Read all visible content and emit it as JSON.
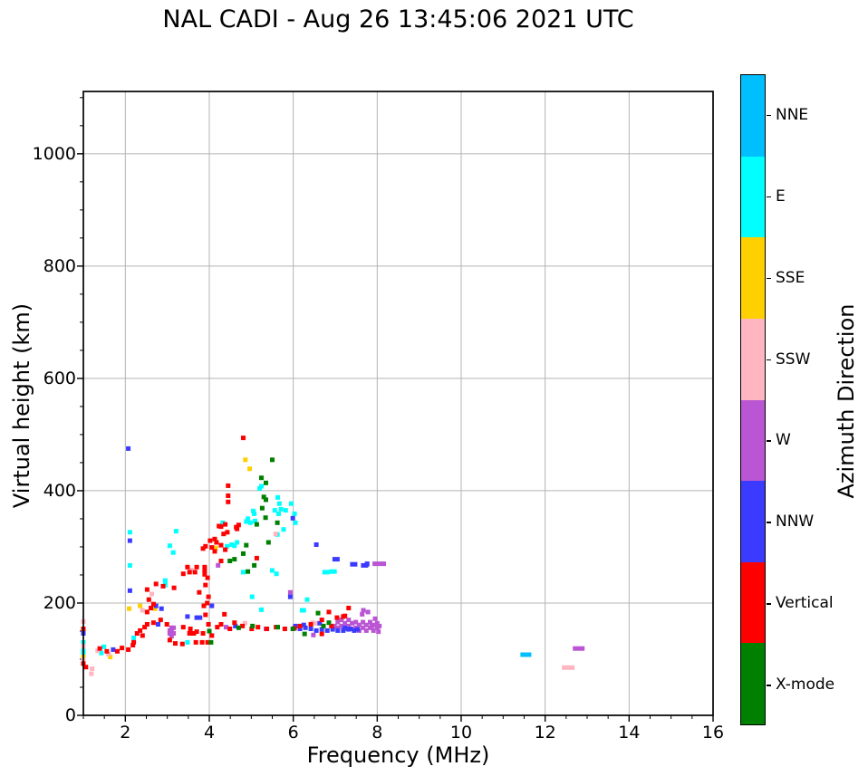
{
  "title": "NAL CADI - Aug 26 13:45:06 2021 UTC",
  "chart_data": {
    "type": "scatter",
    "title": "NAL CADI - Aug 26 13:45:06 2021 UTC",
    "xlabel": "Frequency (MHz)",
    "ylabel": "Virtual height (km)",
    "xlim": [
      1,
      16
    ],
    "ylim": [
      0,
      1111
    ],
    "x_ticks": [
      2,
      4,
      6,
      8,
      10,
      12,
      14,
      16
    ],
    "x_minor_step": 0.5,
    "y_ticks": [
      0,
      200,
      400,
      600,
      800,
      1000
    ],
    "y_minor_step": 50,
    "grid": true,
    "grid_color": "#b4b4b4",
    "background": "#ffffff",
    "colorbar": {
      "title": "Azimuth Direction",
      "position": "right",
      "segments": [
        {
          "label": "NNE",
          "color": "#00BFFF"
        },
        {
          "label": "E",
          "color": "#00FFFF"
        },
        {
          "label": "SSE",
          "color": "#FFD000"
        },
        {
          "label": "SSW",
          "color": "#FFB6C1"
        },
        {
          "label": "W",
          "color": "#BA55D3"
        },
        {
          "label": "NNW",
          "color": "#3B3BFF"
        },
        {
          "label": "Vertical",
          "color": "#FF0000"
        },
        {
          "label": "X-mode",
          "color": "#008000"
        }
      ]
    },
    "series": [
      {
        "name": "NNE",
        "color": "#00BFFF",
        "points": [
          [
            11.54,
            108,
            12
          ]
        ]
      },
      {
        "name": "E",
        "color": "#00FFFF",
        "points": [
          [
            2.11,
            326
          ],
          [
            2.11,
            267
          ],
          [
            2.2,
            138
          ],
          [
            2.95,
            240
          ],
          [
            2.95,
            232
          ],
          [
            3.06,
            302
          ],
          [
            3.14,
            290
          ],
          [
            3.21,
            328
          ],
          [
            3.48,
            130
          ],
          [
            1.43,
            111
          ],
          [
            1.49,
            122
          ],
          [
            1.0,
            130
          ],
          [
            1.0,
            115
          ],
          [
            1.0,
            109
          ],
          [
            4.42,
            301
          ],
          [
            4.53,
            304
          ],
          [
            4.66,
            308
          ],
          [
            4.6,
            302
          ],
          [
            4.32,
            343
          ],
          [
            4.88,
            345
          ],
          [
            4.98,
            343
          ],
          [
            5.07,
            359
          ],
          [
            5.09,
            346
          ],
          [
            5.2,
            404
          ],
          [
            5.24,
            408
          ],
          [
            5.63,
            388
          ],
          [
            5.67,
            377
          ],
          [
            5.71,
            367
          ],
          [
            5.65,
            359
          ],
          [
            5.95,
            377
          ],
          [
            6.03,
            359
          ],
          [
            6.05,
            343
          ],
          [
            5.05,
            364
          ],
          [
            5.56,
            365
          ],
          [
            5.82,
            365
          ],
          [
            4.92,
            350
          ],
          [
            5.77,
            331
          ],
          [
            5.62,
            322
          ],
          [
            4.81,
            255
          ],
          [
            5.5,
            258
          ],
          [
            5.6,
            252
          ],
          [
            6.25,
            187
          ],
          [
            6.21,
            187
          ],
          [
            6.33,
            206
          ],
          [
            6.78,
            255,
            8
          ],
          [
            6.95,
            256,
            8
          ],
          [
            5.02,
            211
          ],
          [
            5.24,
            188
          ]
        ]
      },
      {
        "name": "SSE",
        "color": "#FFD000",
        "points": [
          [
            4.86,
            455
          ],
          [
            4.96,
            439
          ],
          [
            4.15,
            298
          ],
          [
            2.09,
            190
          ],
          [
            2.35,
            195
          ],
          [
            2.71,
            190
          ],
          [
            1.0,
            104
          ],
          [
            1.64,
            104
          ],
          [
            1.0,
            147
          ]
        ]
      },
      {
        "name": "SSW",
        "color": "#FFB6C1",
        "points": [
          [
            5.58,
            323
          ],
          [
            3.57,
            259
          ],
          [
            2.63,
            216
          ],
          [
            2.41,
            187
          ],
          [
            1.0,
            167
          ],
          [
            1.0,
            123
          ],
          [
            1.0,
            98
          ],
          [
            1.21,
            83
          ],
          [
            1.34,
            115
          ],
          [
            1.6,
            109
          ],
          [
            1.19,
            74
          ],
          [
            6.46,
            165
          ],
          [
            6.53,
            164
          ],
          [
            4.85,
            164
          ],
          [
            12.55,
            85,
            14
          ]
        ]
      },
      {
        "name": "W",
        "color": "#BA55D3",
        "points": [
          [
            4.21,
            267
          ],
          [
            3.06,
            146
          ],
          [
            3.1,
            151
          ],
          [
            3.15,
            146
          ],
          [
            3.1,
            141
          ],
          [
            3.06,
            151
          ],
          [
            3.15,
            156
          ],
          [
            3.1,
            156
          ],
          [
            4.4,
            157
          ],
          [
            5.35,
            154
          ],
          [
            6.48,
            143
          ],
          [
            5.93,
            219
          ],
          [
            7.67,
            187
          ],
          [
            7.78,
            184
          ],
          [
            7.64,
            180
          ],
          [
            7.76,
            269
          ],
          [
            7.94,
            270
          ],
          [
            8.1,
            270,
            10
          ],
          [
            6.98,
            159
          ],
          [
            7.06,
            156
          ],
          [
            7.06,
            166
          ],
          [
            7.15,
            159
          ],
          [
            7.15,
            170
          ],
          [
            7.23,
            154
          ],
          [
            7.23,
            164
          ],
          [
            7.32,
            159
          ],
          [
            7.32,
            170
          ],
          [
            7.4,
            154
          ],
          [
            7.4,
            164
          ],
          [
            7.49,
            156
          ],
          [
            7.49,
            166
          ],
          [
            7.57,
            151
          ],
          [
            7.57,
            161
          ],
          [
            7.66,
            156
          ],
          [
            7.66,
            166
          ],
          [
            7.74,
            151
          ],
          [
            7.74,
            161
          ],
          [
            7.83,
            156
          ],
          [
            7.83,
            166
          ],
          [
            7.91,
            151
          ],
          [
            7.91,
            161
          ],
          [
            8.0,
            156
          ],
          [
            8.0,
            164
          ],
          [
            8.05,
            159
          ],
          [
            8.03,
            149
          ],
          [
            7.95,
            172
          ],
          [
            7.87,
            159
          ],
          [
            12.8,
            119,
            13
          ]
        ]
      },
      {
        "name": "NNW",
        "color": "#3B3BFF",
        "points": [
          [
            2.07,
            475
          ],
          [
            2.11,
            311
          ],
          [
            2.11,
            222
          ],
          [
            2.73,
            195
          ],
          [
            2.78,
            162
          ],
          [
            2.86,
            190
          ],
          [
            1.71,
            117
          ],
          [
            1.0,
            146
          ],
          [
            3.48,
            176
          ],
          [
            3.7,
            174
          ],
          [
            3.78,
            174
          ],
          [
            4.06,
            195
          ],
          [
            5.99,
            351
          ],
          [
            6.55,
            304
          ],
          [
            7.02,
            278,
            8
          ],
          [
            7.44,
            269,
            8
          ],
          [
            7.7,
            267,
            8
          ],
          [
            7.76,
            270
          ],
          [
            5.93,
            211
          ],
          [
            4.62,
            159
          ],
          [
            6.05,
            159
          ],
          [
            6.25,
            161
          ],
          [
            6.63,
            164
          ],
          [
            6.29,
            156
          ],
          [
            6.42,
            154
          ],
          [
            6.55,
            151
          ],
          [
            6.68,
            153
          ],
          [
            6.81,
            151
          ],
          [
            6.94,
            153
          ],
          [
            7.06,
            151
          ],
          [
            7.19,
            151
          ],
          [
            7.32,
            153
          ],
          [
            7.45,
            151
          ],
          [
            7.53,
            153
          ],
          [
            7.23,
            156
          ],
          [
            7.36,
            154
          ],
          [
            6.16,
            154
          ]
        ]
      },
      {
        "name": "Vertical",
        "color": "#FF0000",
        "points": [
          [
            4.81,
            494
          ],
          [
            4.45,
            409
          ],
          [
            4.45,
            391
          ],
          [
            4.45,
            380
          ],
          [
            4.23,
            337
          ],
          [
            4.28,
            336
          ],
          [
            4.34,
            323
          ],
          [
            4.38,
            340
          ],
          [
            4.64,
            335
          ],
          [
            4.66,
            332
          ],
          [
            4.7,
            339
          ],
          [
            4.02,
            311
          ],
          [
            4.06,
            299
          ],
          [
            4.13,
            292
          ],
          [
            4.13,
            314
          ],
          [
            4.17,
            308
          ],
          [
            4.28,
            303
          ],
          [
            4.38,
            295
          ],
          [
            4.43,
            326
          ],
          [
            3.91,
            301
          ],
          [
            3.85,
            297
          ],
          [
            4.28,
            275
          ],
          [
            3.89,
            264
          ],
          [
            3.89,
            257
          ],
          [
            3.48,
            264
          ],
          [
            3.7,
            264
          ],
          [
            5.13,
            280
          ],
          [
            3.38,
            252
          ],
          [
            3.53,
            255
          ],
          [
            3.66,
            255
          ],
          [
            3.89,
            251
          ],
          [
            3.96,
            245
          ],
          [
            2.73,
            234
          ],
          [
            2.9,
            230
          ],
          [
            3.16,
            227
          ],
          [
            2.52,
            224
          ],
          [
            2.56,
            206
          ],
          [
            2.67,
            198
          ],
          [
            2.52,
            184
          ],
          [
            2.61,
            191
          ],
          [
            3.91,
            232
          ],
          [
            3.76,
            219
          ],
          [
            3.98,
            211
          ],
          [
            3.87,
            195
          ],
          [
            3.91,
            179
          ],
          [
            3.98,
            162
          ],
          [
            3.85,
            146
          ],
          [
            4.06,
            142
          ],
          [
            3.95,
            200
          ],
          [
            3.38,
            157
          ],
          [
            3.55,
            154
          ],
          [
            3.7,
            149
          ],
          [
            4.19,
            157
          ],
          [
            4.28,
            162
          ],
          [
            4.49,
            154
          ],
          [
            4.6,
            165
          ],
          [
            4.36,
            180
          ],
          [
            4.79,
            159
          ],
          [
            5.01,
            154
          ],
          [
            5.16,
            157
          ],
          [
            5.37,
            154
          ],
          [
            5.59,
            157
          ],
          [
            5.8,
            154
          ],
          [
            6.03,
            155
          ],
          [
            6.16,
            159
          ],
          [
            3.06,
            134
          ],
          [
            3.19,
            128
          ],
          [
            3.36,
            127
          ],
          [
            3.53,
            146
          ],
          [
            3.63,
            146
          ],
          [
            3.68,
            130
          ],
          [
            3.83,
            130
          ],
          [
            3.96,
            130
          ],
          [
            2.07,
            117
          ],
          [
            2.18,
            125
          ],
          [
            2.2,
            130
          ],
          [
            2.28,
            146
          ],
          [
            2.35,
            151
          ],
          [
            2.41,
            142
          ],
          [
            2.46,
            157
          ],
          [
            2.52,
            162
          ],
          [
            2.67,
            165
          ],
          [
            2.84,
            170
          ],
          [
            2.99,
            162
          ],
          [
            1.39,
            119
          ],
          [
            1.56,
            114
          ],
          [
            1.81,
            114
          ],
          [
            1.92,
            120
          ],
          [
            1.0,
            154
          ],
          [
            1.0,
            92
          ],
          [
            1.06,
            86
          ],
          [
            6.42,
            162
          ],
          [
            6.68,
            170
          ],
          [
            6.85,
            184
          ],
          [
            6.91,
            159
          ],
          [
            7.04,
            174
          ],
          [
            7.19,
            176
          ],
          [
            7.23,
            177
          ],
          [
            7.32,
            191
          ],
          [
            6.68,
            145
          ]
        ]
      },
      {
        "name": "X-mode",
        "color": "#008000",
        "points": [
          [
            5.5,
            455
          ],
          [
            5.24,
            423
          ],
          [
            5.35,
            414
          ],
          [
            5.3,
            389
          ],
          [
            5.35,
            384
          ],
          [
            5.13,
            340
          ],
          [
            5.26,
            369
          ],
          [
            5.34,
            352
          ],
          [
            5.62,
            343
          ],
          [
            5.41,
            308
          ],
          [
            4.88,
            303
          ],
          [
            4.81,
            288
          ],
          [
            4.49,
            275
          ],
          [
            4.6,
            278
          ],
          [
            5.07,
            267
          ],
          [
            4.92,
            256
          ],
          [
            4.04,
            130
          ],
          [
            4.0,
            150
          ],
          [
            4.7,
            156
          ],
          [
            5.03,
            159
          ],
          [
            5.63,
            157
          ],
          [
            5.99,
            154
          ],
          [
            6.27,
            145
          ],
          [
            6.59,
            182
          ],
          [
            6.85,
            165
          ],
          [
            6.72,
            159
          ]
        ]
      }
    ]
  }
}
